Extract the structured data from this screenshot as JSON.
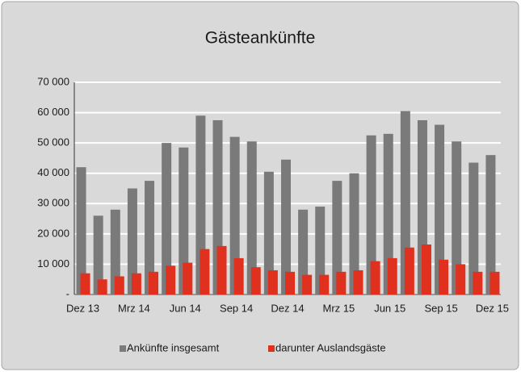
{
  "chart_data": {
    "type": "bar",
    "title": "Gästeankünfte",
    "categories": [
      "Dez 13",
      null,
      null,
      "Mrz 14",
      null,
      null,
      "Jun 14",
      null,
      null,
      "Sep 14",
      null,
      null,
      "Dez 14",
      null,
      null,
      "Mrz 15",
      null,
      null,
      "Jun 15",
      null,
      null,
      "Sep 15",
      null,
      null,
      "Dez 15"
    ],
    "series": [
      {
        "name": "Ankünfte insgesamt",
        "color": "#7a7a7a",
        "values": [
          42000,
          26000,
          28000,
          35000,
          37500,
          50000,
          48500,
          59000,
          57500,
          52000,
          50500,
          40500,
          44500,
          28000,
          29000,
          37500,
          40000,
          52500,
          53000,
          60500,
          57500,
          56000,
          50500,
          43500,
          46000
        ]
      },
      {
        "name": "darunter Auslandsgäste",
        "color": "#e0301e",
        "values": [
          7000,
          5000,
          6000,
          7000,
          7500,
          9500,
          10500,
          15000,
          16000,
          12000,
          9000,
          8000,
          7500,
          6500,
          6500,
          7500,
          8000,
          11000,
          12000,
          15500,
          16500,
          11500,
          10000,
          7500,
          7500
        ]
      }
    ],
    "ylim": [
      0,
      70000
    ],
    "yticks": [
      {
        "value": 0,
        "label": "-"
      },
      {
        "value": 10000,
        "label": "10 000"
      },
      {
        "value": 20000,
        "label": "20 000"
      },
      {
        "value": 30000,
        "label": "30 000"
      },
      {
        "value": 40000,
        "label": "40 000"
      },
      {
        "value": 50000,
        "label": "50 000"
      },
      {
        "value": 60000,
        "label": "60 000"
      },
      {
        "value": 70000,
        "label": "70 000"
      }
    ],
    "grid": true,
    "legend": "bottom"
  }
}
